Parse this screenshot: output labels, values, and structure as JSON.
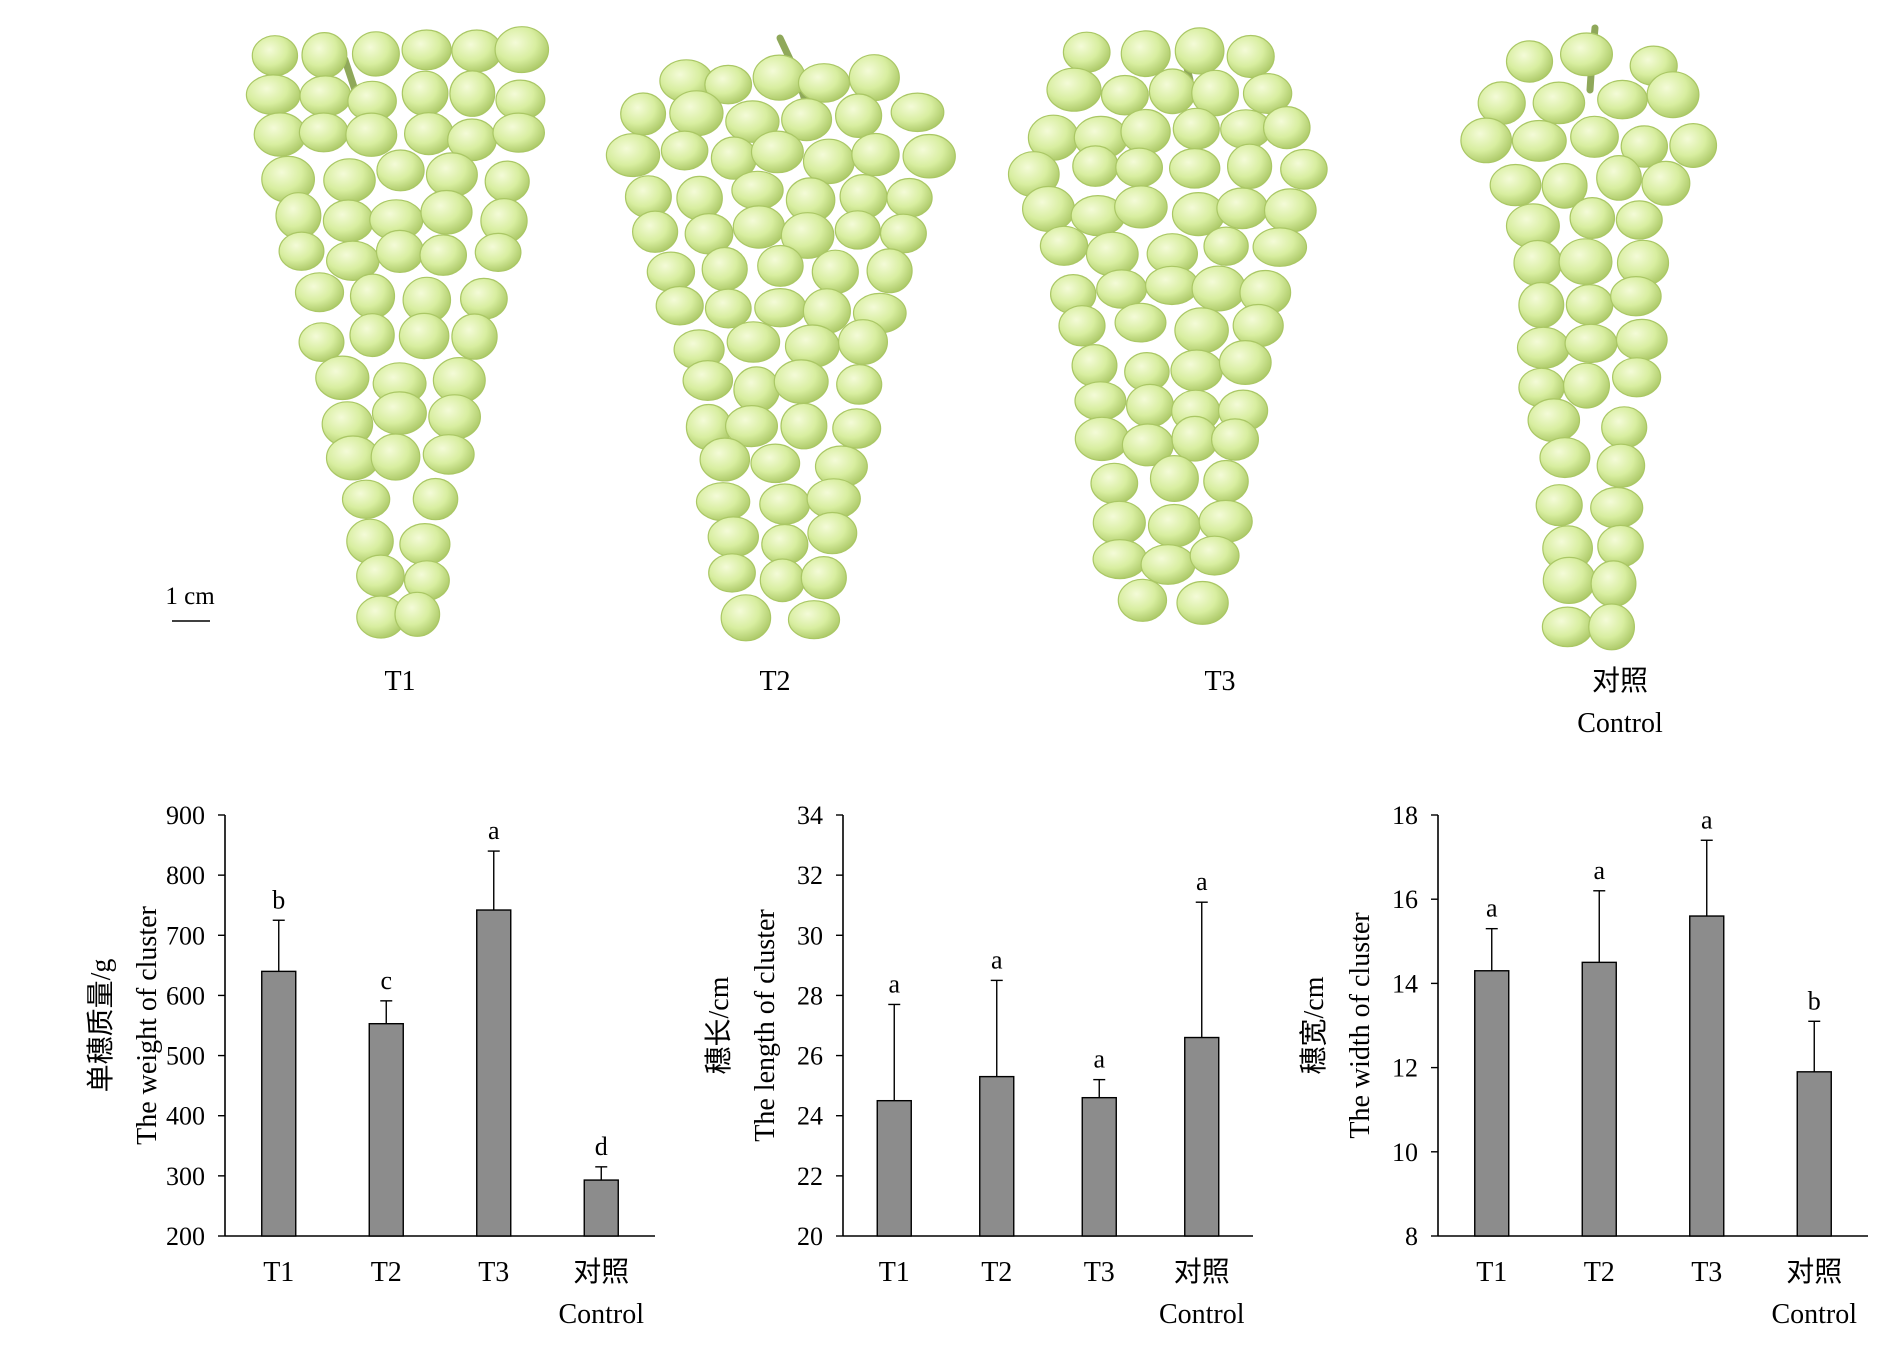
{
  "photos": {
    "scale_bar": "1 cm",
    "labels": [
      {
        "id": "T1",
        "lines": [
          "T1"
        ]
      },
      {
        "id": "T2",
        "lines": [
          "T2"
        ]
      },
      {
        "id": "T3",
        "lines": [
          "T3"
        ]
      },
      {
        "id": "Control",
        "lines": [
          "对照",
          "Control"
        ]
      }
    ],
    "colors": {
      "berry_fill": "#d8eea0",
      "berry_light": "#f4fbd8",
      "berry_edge": "#aac765",
      "stem": "#8fa85a"
    }
  },
  "colors": {
    "bar": "#8c8c8c",
    "axis": "#000000"
  },
  "chart_data": [
    {
      "type": "bar",
      "ylabel": [
        "单穗质量/g",
        "The weight of cluster"
      ],
      "categories": [
        [
          "T1"
        ],
        [
          "T2"
        ],
        [
          "T3"
        ],
        [
          "对照",
          "Control"
        ]
      ],
      "values": [
        640,
        553,
        742,
        293
      ],
      "errors": [
        85,
        38,
        98,
        22
      ],
      "significance": [
        "b",
        "c",
        "a",
        "d"
      ],
      "ylim": [
        200,
        900
      ],
      "yticks": [
        "200",
        "300",
        "400",
        "500",
        "600",
        "700",
        "800",
        "900"
      ]
    },
    {
      "type": "bar",
      "ylabel": [
        "穗长/cm",
        "The length of cluster"
      ],
      "categories": [
        [
          "T1"
        ],
        [
          "T2"
        ],
        [
          "T3"
        ],
        [
          "对照",
          "Control"
        ]
      ],
      "values": [
        24.5,
        25.3,
        24.6,
        26.6
      ],
      "errors": [
        3.2,
        3.2,
        0.6,
        4.5
      ],
      "significance": [
        "a",
        "a",
        "a",
        "a"
      ],
      "ylim": [
        20,
        34
      ],
      "yticks": [
        "20",
        "22",
        "24",
        "26",
        "28",
        "30",
        "32",
        "34"
      ]
    },
    {
      "type": "bar",
      "ylabel": [
        "穗宽/cm",
        "The width of cluster"
      ],
      "categories": [
        [
          "T1"
        ],
        [
          "T2"
        ],
        [
          "T3"
        ],
        [
          "对照",
          "Control"
        ]
      ],
      "values": [
        14.3,
        14.5,
        15.6,
        11.9
      ],
      "errors": [
        1.0,
        1.7,
        1.8,
        1.2
      ],
      "significance": [
        "a",
        "a",
        "a",
        "b"
      ],
      "ylim": [
        8,
        18
      ],
      "yticks": [
        "8",
        "10",
        "12",
        "14",
        "16",
        "18"
      ]
    }
  ]
}
